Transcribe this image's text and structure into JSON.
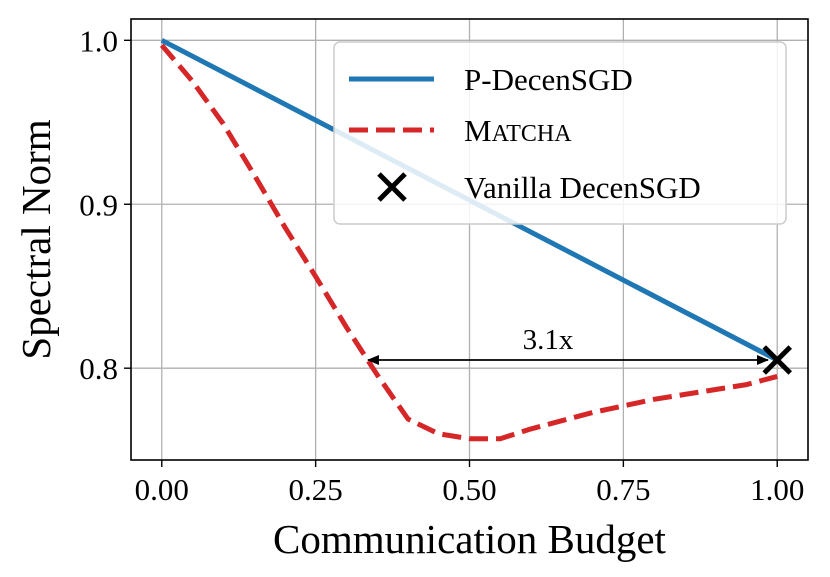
{
  "chart_data": {
    "type": "line",
    "title": "",
    "xlabel": "Communication Budget",
    "ylabel": "Spectral Norm",
    "xlim": [
      -0.05,
      1.05
    ],
    "ylim": [
      0.744,
      1.013
    ],
    "xticks": [
      0.0,
      0.25,
      0.5,
      0.75,
      1.0
    ],
    "xtick_labels": [
      "0.00",
      "0.25",
      "0.50",
      "0.75",
      "1.00"
    ],
    "yticks": [
      0.8,
      0.9,
      1.0
    ],
    "ytick_labels": [
      "0.8",
      "0.9",
      "1.0"
    ],
    "grid": true,
    "legend_position": "top-right",
    "series": [
      {
        "name": "P-DecenSGD",
        "style": "solid",
        "color": "#1f77b4",
        "x": [
          0.0,
          1.0
        ],
        "y": [
          1.0,
          0.805
        ]
      },
      {
        "name": "MATCHA",
        "style": "dashed",
        "color": "#d62728",
        "x": [
          0.0,
          0.05,
          0.1,
          0.15,
          0.2,
          0.25,
          0.3,
          0.35,
          0.4,
          0.45,
          0.5,
          0.55,
          0.6,
          0.65,
          0.7,
          0.75,
          0.8,
          0.85,
          0.9,
          0.95,
          1.0
        ],
        "y": [
          0.997,
          0.975,
          0.949,
          0.918,
          0.886,
          0.856,
          0.825,
          0.796,
          0.769,
          0.76,
          0.757,
          0.757,
          0.763,
          0.768,
          0.773,
          0.777,
          0.781,
          0.784,
          0.787,
          0.79,
          0.795
        ]
      }
    ],
    "markers": [
      {
        "name": "Vanilla DecenSGD",
        "symbol": "x",
        "color": "#000000",
        "x": 1.0,
        "y": 0.805
      }
    ],
    "annotations": [
      {
        "text": "3.1x",
        "arrow_from_x": 0.335,
        "arrow_to_x": 0.985,
        "arrow_y": 0.805
      }
    ]
  }
}
